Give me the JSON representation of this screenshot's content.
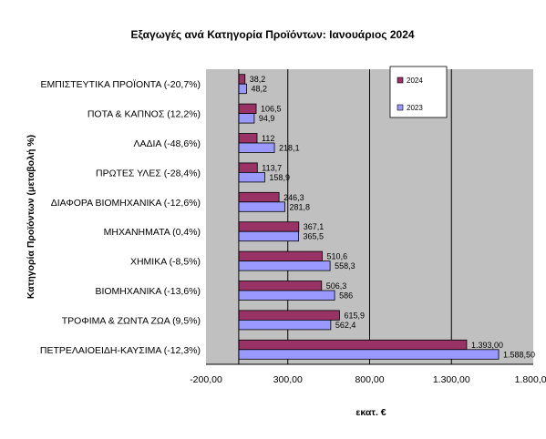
{
  "chart_data": {
    "type": "bar",
    "orientation": "horizontal",
    "title": "Εξαγωγές ανά Κατηγορία Προϊόντων: Ιανουάριος 2024",
    "xlabel": "εκατ. €",
    "ylabel": "Κατηγορία Προϊόντων (μεταβολή %)",
    "categories": [
      "ΕΜΠΙΣΤΕΥΤΙΚΑ ΠΡΟΪΟΝΤΑ (-20,7%)",
      "ΠΟΤΑ & ΚΑΠΝΟΣ (12,2%)",
      "ΛΑΔΙΑ (-48,6%)",
      "ΠΡΩΤΕΣ ΥΛΕΣ (-28,4%)",
      "ΔΙΑΦΟΡΑ ΒΙΟΜΗΧΑΝΙΚΑ (-12,6%)",
      "ΜΗΧΑΝΗΜΑΤΑ (0,4%)",
      "ΧΗΜΙΚΑ (-8,5%)",
      "ΒΙΟΜΗΧΑΝΙΚΑ (-13,6%)",
      "ΤΡΟΦΙΜΑ & ΖΩΝΤΑ ΖΩΑ (9,5%)",
      "ΠΕΤΡΕΛΑΙΟΕΙΔΗ-ΚΑΥΣΙΜΑ (-12,3%)"
    ],
    "series": [
      {
        "name": "2024",
        "color": "#993366",
        "values": [
          38.2,
          106.5,
          112,
          113.7,
          246.3,
          367.1,
          510.6,
          506.3,
          615.9,
          1393.0
        ],
        "labels": [
          "38,2",
          "106,5",
          "112",
          "113,7",
          "246,3",
          "367,1",
          "510,6",
          "506,3",
          "615,9",
          "1.393,00"
        ]
      },
      {
        "name": "2023",
        "color": "#9999ff",
        "values": [
          48.2,
          94.9,
          218.1,
          158.9,
          281.8,
          365.5,
          558.3,
          586,
          562.4,
          1588.5
        ],
        "labels": [
          "48,2",
          "94,9",
          "218,1",
          "158,9",
          "281,8",
          "365,5",
          "558,3",
          "586",
          "562,4",
          "1.588,50"
        ]
      }
    ],
    "xlim": [
      -200,
      1800
    ],
    "xticks": [
      -200,
      300,
      800,
      1300,
      1800
    ],
    "xtick_labels": [
      "-200,00",
      "300,00",
      "800,00",
      "1.300,00",
      "1.800,00"
    ],
    "grid": "vertical major",
    "plot_background": "#c0c0c0",
    "legend": "top-right"
  }
}
